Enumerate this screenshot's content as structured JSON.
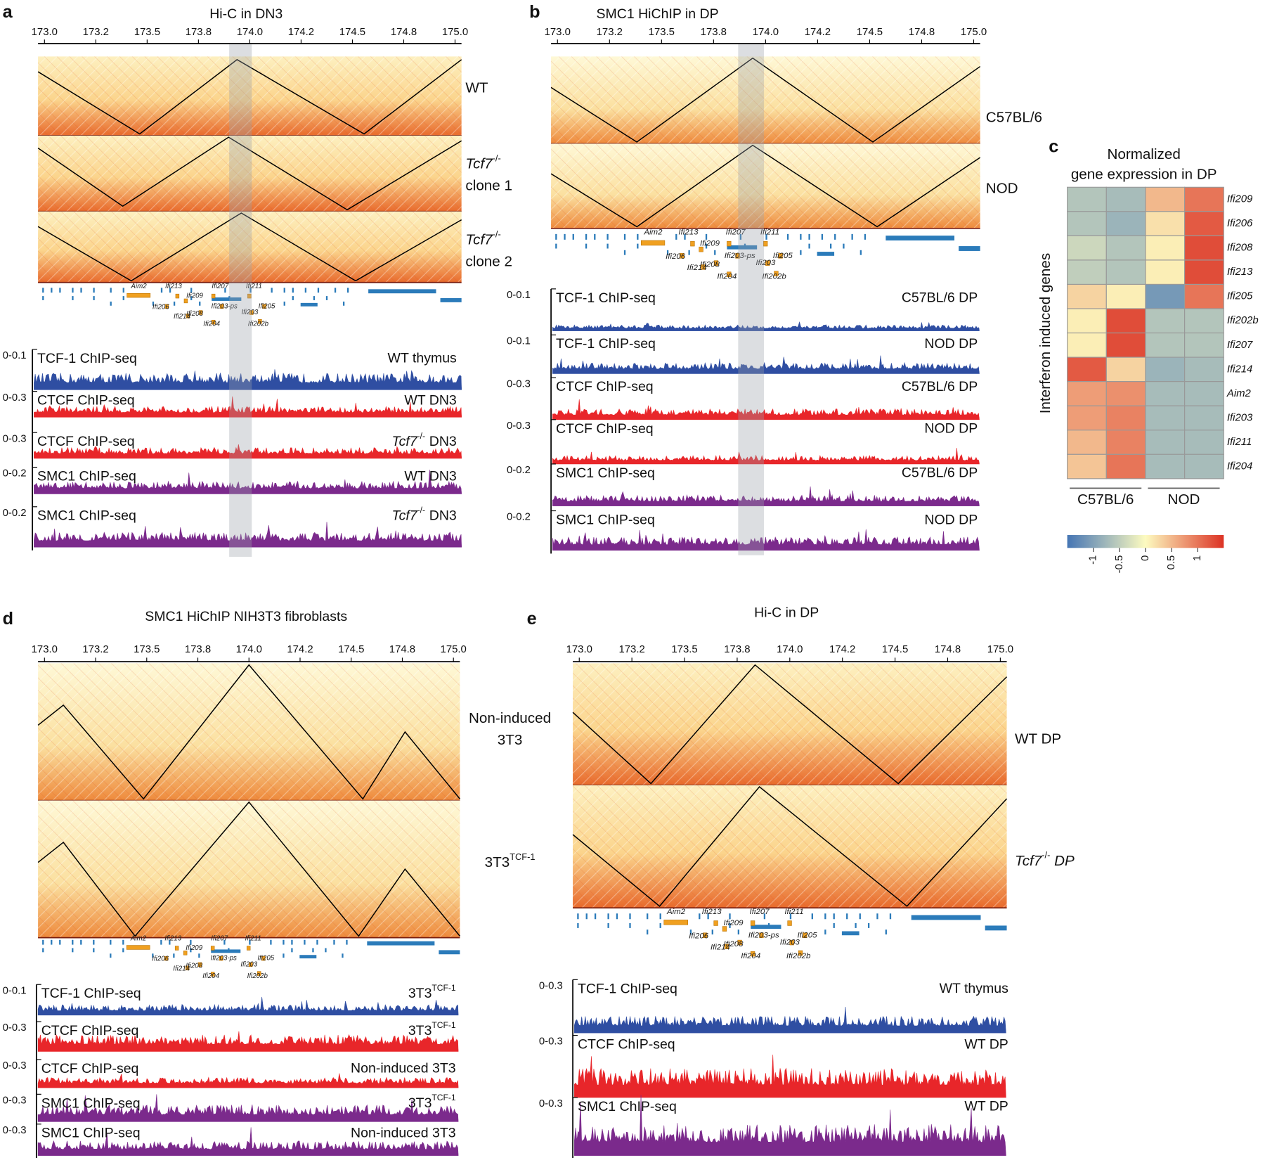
{
  "genes": [
    "Aim2",
    "Ifi213",
    "Ifi207",
    "Ifi211",
    "Ifi209",
    "Ifi206",
    "Ifi203-ps",
    "Ifi205",
    "Ifi214",
    "Ifi208",
    "Ifi203",
    "Ifi204",
    "Ifi202b"
  ],
  "panels": [
    {
      "letter": "a",
      "title": "Hi-C in DN3",
      "ticks": [
        "173.0",
        "173.2",
        "173.5",
        "173.8",
        "174.0",
        "174.2",
        "174.5",
        "174.8",
        "175.0"
      ],
      "maps": [
        [
          [
            {
              "text": "WT"
            }
          ]
        ],
        [
          [
            {
              "text": "Tcf7",
              "style": "italic"
            },
            {
              "text": "-/-",
              "style": "sup"
            }
          ],
          [
            {
              "text": "clone 1"
            }
          ]
        ],
        [
          [
            {
              "text": "Tcf7",
              "style": "italic"
            },
            {
              "text": "-/-",
              "style": "sup"
            }
          ],
          [
            {
              "text": "clone 2"
            }
          ]
        ]
      ],
      "tracks": [
        {
          "range": "0-0.1",
          "name": "TCF-1 ChIP-seq",
          "sample": [
            {
              "text": "WT thymus"
            }
          ],
          "color": "#2f4ea2"
        },
        {
          "range": "0-0.3",
          "name": "CTCF ChIP-seq",
          "sample": [
            {
              "text": "WT DN3"
            }
          ],
          "color": "#e8262a"
        },
        {
          "range": "0-0.3",
          "name": "CTCF ChIP-seq",
          "sample": [
            {
              "text": "Tcf7",
              "style": "italic"
            },
            {
              "text": "-/-",
              "style": "sup"
            },
            {
              "text": "DN3"
            }
          ],
          "color": "#e8262a"
        },
        {
          "range": "0-0.2",
          "name": "SMC1 ChIP-seq",
          "sample": [
            {
              "text": "WT DN3"
            }
          ],
          "color": "#7b2a8c"
        },
        {
          "range": "0-0.2",
          "name": "SMC1 ChIP-seq",
          "sample": [
            {
              "text": "Tcf7",
              "style": "italic"
            },
            {
              "text": "-/-",
              "style": "sup"
            },
            {
              "text": "DN3"
            }
          ],
          "color": "#7b2a8c"
        }
      ]
    },
    {
      "letter": "b",
      "title": "SMC1 HiChIP in DP",
      "ticks": [
        "173.0",
        "173.2",
        "173.5",
        "173.8",
        "174.0",
        "174.2",
        "174.5",
        "174.8",
        "175.0"
      ],
      "maps": [
        [
          [
            {
              "text": "C57BL/6"
            }
          ]
        ],
        [
          [
            {
              "text": "NOD"
            }
          ]
        ]
      ],
      "tracks": [
        {
          "range": "0-0.1",
          "name": "TCF-1 ChIP-seq",
          "sample": [
            {
              "text": "C57BL/6 DP"
            }
          ],
          "color": "#2f4ea2"
        },
        {
          "range": "0-0.1",
          "name": "TCF-1 ChIP-seq",
          "sample": [
            {
              "text": "NOD DP"
            }
          ],
          "color": "#2f4ea2"
        },
        {
          "range": "0-0.3",
          "name": "CTCF ChIP-seq",
          "sample": [
            {
              "text": "C57BL/6 DP"
            }
          ],
          "color": "#e8262a"
        },
        {
          "range": "0-0.3",
          "name": "CTCF ChIP-seq",
          "sample": [
            {
              "text": "NOD DP"
            }
          ],
          "color": "#e8262a"
        },
        {
          "range": "0-0.2",
          "name": "SMC1 ChIP-seq",
          "sample": [
            {
              "text": "C57BL/6 DP"
            }
          ],
          "color": "#7b2a8c"
        },
        {
          "range": "0-0.2",
          "name": "SMC1 ChIP-seq",
          "sample": [
            {
              "text": "NOD DP"
            }
          ],
          "color": "#7b2a8c"
        }
      ]
    },
    {
      "letter": "d",
      "title": "SMC1 HiChIP NIH3T3 fibroblasts",
      "ticks": [
        "173.0",
        "173.2",
        "173.5",
        "173.8",
        "174.0",
        "174.2",
        "174.5",
        "174.8",
        "175.0"
      ],
      "maps": [
        [
          [
            {
              "text": "Non-induced"
            }
          ],
          [
            {
              "text": "3T3"
            }
          ]
        ],
        [
          [
            {
              "text": "3T3"
            },
            {
              "text": "TCF-1",
              "style": "sup"
            }
          ]
        ]
      ],
      "tracks": [
        {
          "range": "0-0.1",
          "name": "TCF-1 ChIP-seq",
          "sample": [
            {
              "text": "3T3"
            },
            {
              "text": "TCF-1",
              "style": "sup"
            }
          ],
          "color": "#2f4ea2"
        },
        {
          "range": "0-0.3",
          "name": "CTCF ChIP-seq",
          "sample": [
            {
              "text": "3T3"
            },
            {
              "text": "TCF-1",
              "style": "sup"
            }
          ],
          "color": "#e8262a"
        },
        {
          "range": "0-0.3",
          "name": "CTCF ChIP-seq",
          "sample": [
            {
              "text": "Non-induced 3T3"
            }
          ],
          "color": "#e8262a"
        },
        {
          "range": "0-0.3",
          "name": "SMC1 ChIP-seq",
          "sample": [
            {
              "text": "3T3"
            },
            {
              "text": "TCF-1",
              "style": "sup"
            }
          ],
          "color": "#7b2a8c"
        },
        {
          "range": "0-0.3",
          "name": "SMC1 ChIP-seq",
          "sample": [
            {
              "text": "Non-induced 3T3"
            }
          ],
          "color": "#7b2a8c"
        }
      ]
    },
    {
      "letter": "e",
      "title": "Hi-C in DP",
      "ticks": [
        "173.0",
        "173.2",
        "173.5",
        "173.8",
        "174.0",
        "174.2",
        "174.5",
        "174.8",
        "175.0"
      ],
      "maps": [
        [
          [
            {
              "text": "WT DP"
            }
          ]
        ],
        [
          [
            {
              "text": "Tcf7",
              "style": "italic"
            },
            {
              "text": "-/-",
              "style": "sup"
            },
            {
              "text": "DP",
              "style": "italic"
            }
          ]
        ]
      ],
      "tracks": [
        {
          "range": "0-0.3",
          "name": "TCF-1 ChIP-seq",
          "sample": [
            {
              "text": "WT thymus"
            }
          ],
          "color": "#2f4ea2"
        },
        {
          "range": "0-0.3",
          "name": "CTCF ChIP-seq",
          "sample": [
            {
              "text": "WT DP"
            }
          ],
          "color": "#e8262a"
        },
        {
          "range": "0-0.3",
          "name": "SMC1 ChIP-seq",
          "sample": [
            {
              "text": "WT DP"
            }
          ],
          "color": "#7b2a8c"
        }
      ]
    }
  ],
  "heatmap": {
    "letter": "c",
    "title": [
      "Normalized",
      "gene expression in DP"
    ],
    "ylabel": "Interferon induced genes",
    "rows": [
      "Ifi209",
      "Ifi206",
      "Ifi208",
      "Ifi213",
      "Ifi205",
      "Ifi202b",
      "Ifi207",
      "Ifi214",
      "Aim2",
      "Ifi203",
      "Ifi211",
      "Ifi204"
    ],
    "groups": [
      "C57BL/6",
      "NOD"
    ],
    "values": [
      [
        -0.6,
        -0.7,
        0.5,
        1.0
      ],
      [
        -0.6,
        -0.8,
        0.2,
        1.2
      ],
      [
        -0.4,
        -0.6,
        0.1,
        1.3
      ],
      [
        -0.5,
        -0.6,
        0.1,
        1.3
      ],
      [
        0.3,
        0.1,
        -1.1,
        1.0
      ],
      [
        0.1,
        1.3,
        -0.6,
        -0.6
      ],
      [
        0.1,
        1.3,
        -0.6,
        -0.6
      ],
      [
        1.2,
        0.3,
        -0.8,
        -0.7
      ],
      [
        0.7,
        0.8,
        -0.7,
        -0.7
      ],
      [
        0.7,
        0.9,
        -0.7,
        -0.7
      ],
      [
        0.5,
        0.9,
        -0.7,
        -0.7
      ],
      [
        0.4,
        1.0,
        -0.7,
        -0.7
      ]
    ],
    "colorbar": {
      "lim": [
        -1.5,
        1.5
      ],
      "ticks": [
        -1,
        -0.5,
        0,
        0.5,
        1
      ],
      "colors": [
        "#4575b4",
        "#fdfbc0",
        "#dc3224"
      ]
    }
  }
}
